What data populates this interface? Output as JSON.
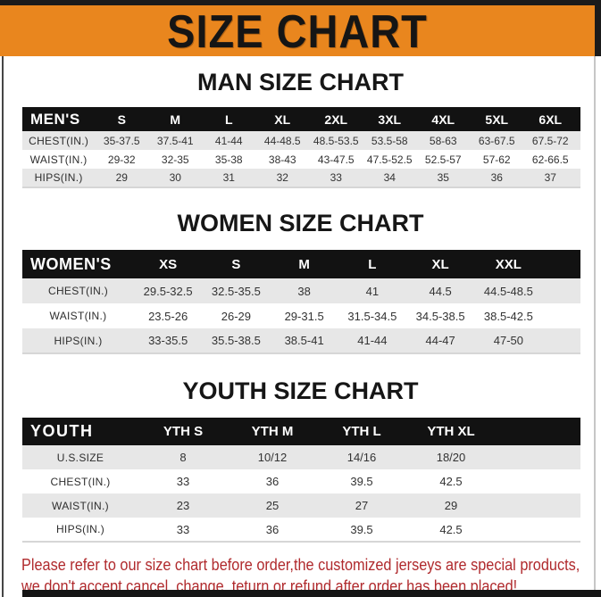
{
  "banner": {
    "title": "SIZE CHART",
    "bg_color": "#e9861e",
    "text_color": "#151515"
  },
  "sections": [
    {
      "heading": "MAN SIZE CHART",
      "table": {
        "label": "MEN'S",
        "columns": [
          "S",
          "M",
          "L",
          "XL",
          "2XL",
          "3XL",
          "4XL",
          "5XL",
          "6XL"
        ],
        "rows": [
          {
            "label": "CHEST(IN.)",
            "values": [
              "35-37.5",
              "37.5-41",
              "41-44",
              "44-48.5",
              "48.5-53.5",
              "53.5-58",
              "58-63",
              "63-67.5",
              "67.5-72"
            ]
          },
          {
            "label": "WAIST(IN.)",
            "values": [
              "29-32",
              "32-35",
              "35-38",
              "38-43",
              "43-47.5",
              "47.5-52.5",
              "52.5-57",
              "57-62",
              "62-66.5"
            ]
          },
          {
            "label": "HIPS(IN.)",
            "values": [
              "29",
              "30",
              "31",
              "32",
              "33",
              "34",
              "35",
              "36",
              "37"
            ]
          }
        ]
      }
    },
    {
      "heading": "WOMEN SIZE CHART",
      "table": {
        "label": "WOMEN'S",
        "columns": [
          "XS",
          "S",
          "M",
          "L",
          "XL",
          "XXL"
        ],
        "rows": [
          {
            "label": "CHEST(IN.)",
            "values": [
              "29.5-32.5",
              "32.5-35.5",
              "38",
              "41",
              "44.5",
              "44.5-48.5"
            ]
          },
          {
            "label": "WAIST(IN.)",
            "values": [
              "23.5-26",
              "26-29",
              "29-31.5",
              "31.5-34.5",
              "34.5-38.5",
              "38.5-42.5"
            ]
          },
          {
            "label": "HIPS(IN.)",
            "values": [
              "33-35.5",
              "35.5-38.5",
              "38.5-41",
              "41-44",
              "44-47",
              "47-50"
            ]
          }
        ]
      }
    },
    {
      "heading": "YOUTH SIZE CHART",
      "table": {
        "label": "YOUTH",
        "columns": [
          "YTH S",
          "YTH M",
          "YTH L",
          "YTH XL"
        ],
        "rows": [
          {
            "label": "U.S.SIZE",
            "values": [
              "8",
              "10/12",
              "14/16",
              "18/20"
            ]
          },
          {
            "label": "CHEST(IN.)",
            "values": [
              "33",
              "36",
              "39.5",
              "42.5"
            ]
          },
          {
            "label": "WAIST(IN.)",
            "values": [
              "23",
              "25",
              "27",
              "29"
            ]
          },
          {
            "label": "HIPS(IN.)",
            "values": [
              "33",
              "36",
              "39.5",
              "42.5"
            ]
          }
        ]
      }
    }
  ],
  "footer": {
    "line1": "Please refer to our size chart before order,the customized jerseys are special products,",
    "line2": "we don't accept cancel, change, teturn or refund after order has been placed!",
    "text_color": "#b02a2d"
  }
}
